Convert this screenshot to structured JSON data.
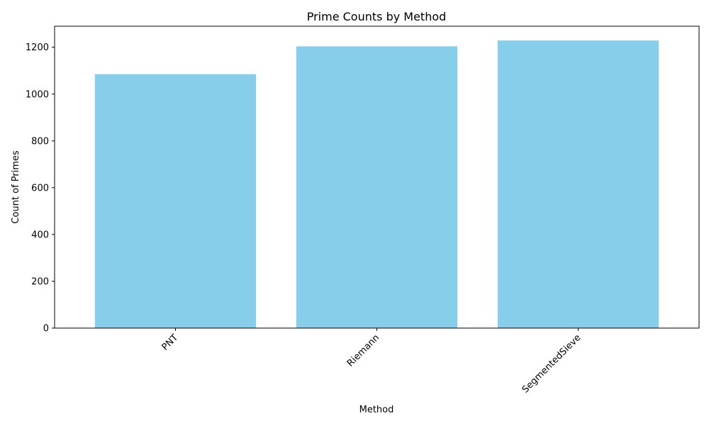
{
  "chart_data": {
    "type": "bar",
    "title": "Prime Counts by Method",
    "xlabel": "Method",
    "ylabel": "Count of Primes",
    "categories": [
      "PNT",
      "Riemann",
      "SegmentedSieve"
    ],
    "values": [
      1085,
      1204,
      1229
    ],
    "ylim": [
      0,
      1290
    ],
    "yticks": [
      0,
      200,
      400,
      600,
      800,
      1000,
      1200
    ],
    "xtick_rotation_deg": 45,
    "grid": false,
    "legend": "none",
    "bar_color": "#87ceeb"
  }
}
